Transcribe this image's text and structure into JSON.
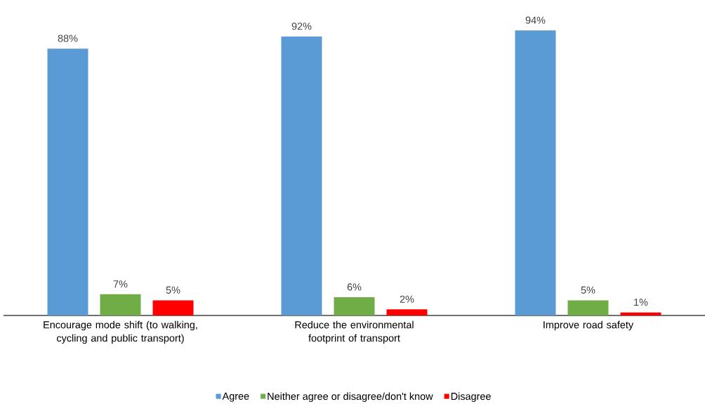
{
  "chart_data": {
    "type": "bar",
    "categories": [
      "Encourage mode shift (to walking, cycling and public transport)",
      "Reduce the environmental footprint of transport",
      "Improve road safety"
    ],
    "series": [
      {
        "name": "Agree",
        "color": "#5b9bd5",
        "values": [
          88,
          92,
          94
        ],
        "value_labels": [
          "88%",
          "92%",
          "94%"
        ]
      },
      {
        "name": "Neither agree or disagree/don't know",
        "color": "#70ad47",
        "values": [
          7,
          6,
          5
        ],
        "value_labels": [
          "7%",
          "6%",
          "5%"
        ]
      },
      {
        "name": "Disagree",
        "color": "#ff0000",
        "values": [
          5,
          2,
          1
        ],
        "value_labels": [
          "5%",
          "2%",
          "1%"
        ]
      }
    ],
    "legend": "bottom"
  }
}
